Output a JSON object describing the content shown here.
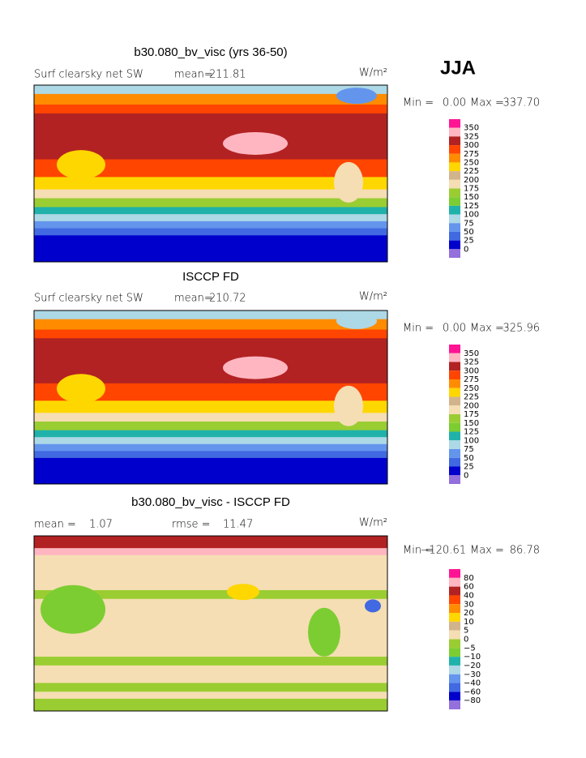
{
  "season": "JJA",
  "panels": [
    {
      "title": "b30.080_bv_visc (yrs 36-50)",
      "left_label": "Surf clearsky net SW",
      "mid_label": "mean=",
      "mid_value": "211.81",
      "units": "W/m²",
      "min_label": "Min =",
      "min": "0.00",
      "max_label": "Max =",
      "max": "337.70",
      "colorbar": {
        "labels": [
          "350",
          "325",
          "300",
          "275",
          "250",
          "225",
          "200",
          "175",
          "150",
          "125",
          "100",
          "75",
          "50",
          "25",
          "0"
        ],
        "colors": [
          "#ff1493",
          "#ffb6c1",
          "#b22222",
          "#ff4500",
          "#ff8c00",
          "#ffd700",
          "#d2b48c",
          "#f5deb3",
          "#9acd32",
          "#7ccd32",
          "#20b2aa",
          "#add8e6",
          "#6495ed",
          "#4169e1",
          "#0000cd",
          "#9370db"
        ]
      }
    },
    {
      "title": "ISCCP FD",
      "left_label": "Surf clearsky net SW",
      "mid_label": "mean=",
      "mid_value": "210.72",
      "units": "W/m²",
      "min_label": "Min =",
      "min": "0.00",
      "max_label": "Max =",
      "max": "325.96",
      "colorbar": {
        "labels": [
          "350",
          "325",
          "300",
          "275",
          "250",
          "225",
          "200",
          "175",
          "150",
          "125",
          "100",
          "75",
          "50",
          "25",
          "0"
        ],
        "colors": [
          "#ff1493",
          "#ffb6c1",
          "#b22222",
          "#ff4500",
          "#ff8c00",
          "#ffd700",
          "#d2b48c",
          "#f5deb3",
          "#9acd32",
          "#7ccd32",
          "#20b2aa",
          "#add8e6",
          "#6495ed",
          "#4169e1",
          "#0000cd",
          "#9370db"
        ]
      }
    },
    {
      "title": "b30.080_bv_visc - ISCCP FD",
      "left_label": "mean =",
      "left_value": "1.07",
      "mid_label": "rmse =",
      "mid_value": "11.47",
      "units": "W/m²",
      "min_label": "Min =",
      "min": "−120.61",
      "max_label": "Max =",
      "max": "86.78",
      "colorbar": {
        "labels": [
          "80",
          "60",
          "40",
          "30",
          "20",
          "10",
          "5",
          "0",
          "−5",
          "−10",
          "−20",
          "−30",
          "−40",
          "−60",
          "−80"
        ],
        "colors": [
          "#ff1493",
          "#ffb6c1",
          "#b22222",
          "#ff4500",
          "#ff8c00",
          "#ffd700",
          "#d2b48c",
          "#f5deb3",
          "#9acd32",
          "#7ccd32",
          "#20b2aa",
          "#add8e6",
          "#6495ed",
          "#4169e1",
          "#0000cd",
          "#9370db"
        ]
      }
    }
  ]
}
